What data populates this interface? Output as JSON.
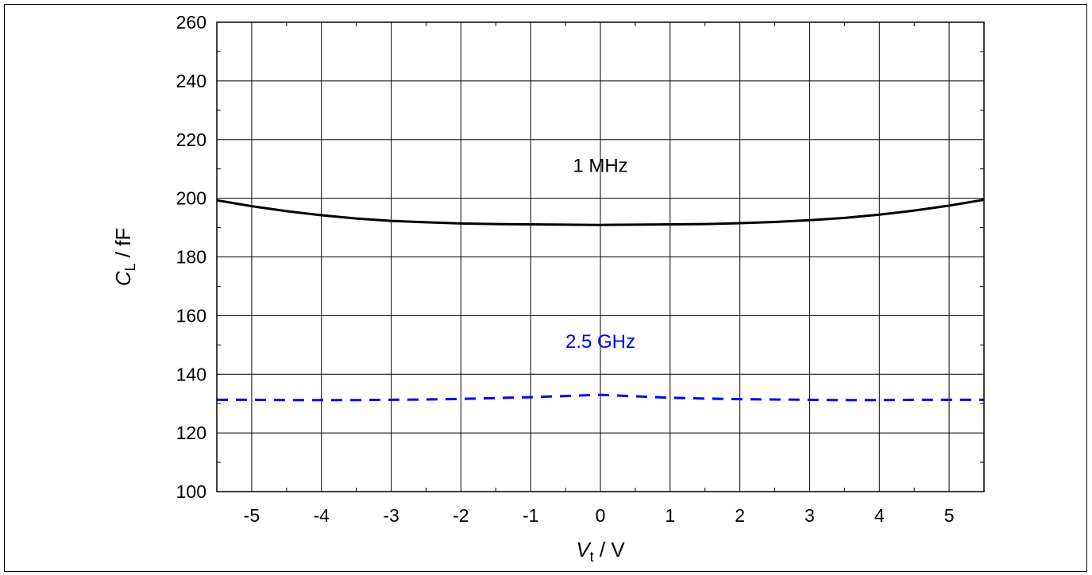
{
  "chart_data": {
    "type": "line",
    "xlabel": {
      "main": "V",
      "sub": "t",
      "unit": " / V"
    },
    "ylabel": {
      "main": "C",
      "sub": "L",
      "unit": " / fF"
    },
    "xlim": [
      -5.5,
      5.5
    ],
    "ylim": [
      100,
      260
    ],
    "xticks": [
      -5,
      -4,
      -3,
      -2,
      -1,
      0,
      1,
      2,
      3,
      4,
      5
    ],
    "yticks": [
      100,
      120,
      140,
      160,
      180,
      200,
      220,
      240,
      260
    ],
    "grid": true,
    "series": [
      {
        "name": "1 MHz",
        "color": "#000000",
        "style": "solid",
        "x": [
          -5.5,
          -5,
          -4.5,
          -4,
          -3.5,
          -3,
          -2.5,
          -2,
          -1.5,
          -1,
          -0.5,
          0,
          0.5,
          1,
          1.5,
          2,
          2.5,
          3,
          3.5,
          4,
          4.5,
          5,
          5.5
        ],
        "y": [
          199.3,
          197.3,
          195.6,
          194.2,
          193.1,
          192.3,
          191.8,
          191.4,
          191.2,
          191.1,
          191.0,
          190.9,
          191.0,
          191.1,
          191.2,
          191.5,
          191.9,
          192.5,
          193.3,
          194.4,
          195.8,
          197.5,
          199.5
        ]
      },
      {
        "name": "2.5 GHz",
        "color": "#0000ff",
        "style": "dashed",
        "x": [
          -5.5,
          -5,
          -4.5,
          -4,
          -3.5,
          -3,
          -2.5,
          -2,
          -1.5,
          -1,
          -0.5,
          0,
          0.5,
          1,
          1.5,
          2,
          2.5,
          3,
          3.5,
          4,
          4.5,
          5,
          5.5
        ],
        "y": [
          131.3,
          131.3,
          131.2,
          131.2,
          131.2,
          131.3,
          131.4,
          131.6,
          131.9,
          132.2,
          132.6,
          133.0,
          132.5,
          132.0,
          131.7,
          131.5,
          131.4,
          131.3,
          131.2,
          131.2,
          131.3,
          131.3,
          131.3
        ]
      }
    ],
    "annotations": [
      {
        "text": "1 MHz",
        "x": 0,
        "y": 209,
        "color": "#000000"
      },
      {
        "text": "2.5 GHz",
        "x": 0,
        "y": 149,
        "color": "#0000ff"
      }
    ]
  }
}
